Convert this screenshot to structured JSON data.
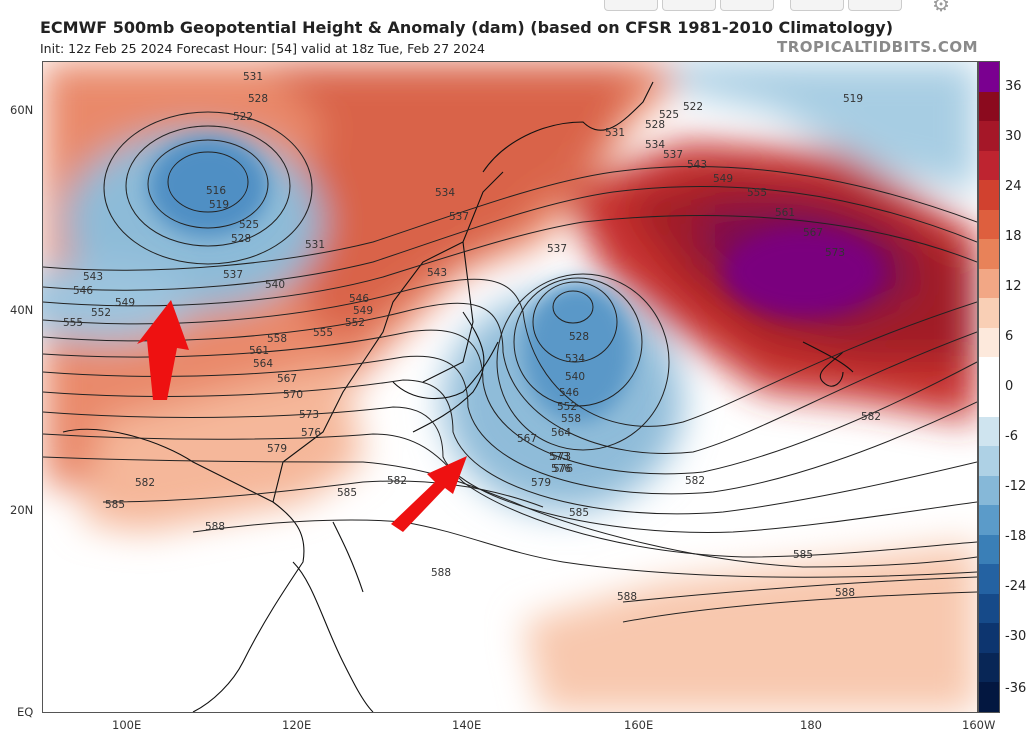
{
  "header": {
    "title": "ECMWF 500mb Geopotential Height & Anomaly (dam) (based on CFSR 1981-2010 Climatology)",
    "subtitle": "Init: 12z Feb 25 2024   Forecast Hour: [54]   valid at 18z Tue, Feb 27 2024",
    "credit": "TROPICALTIDBITS.COM"
  },
  "axes": {
    "y_ticks": [
      "60N",
      "40N",
      "20N",
      "EQ"
    ],
    "x_ticks": [
      "100E",
      "120E",
      "140E",
      "160E",
      "180",
      "160W"
    ]
  },
  "colorbar": {
    "labels": [
      "36",
      "30",
      "24",
      "18",
      "12",
      "6",
      "0",
      "-6",
      "-12",
      "-18",
      "-24",
      "-30",
      "-36"
    ],
    "colors": [
      "#7a0090",
      "#8b0a1e",
      "#a51728",
      "#be2430",
      "#d1412f",
      "#de5f3e",
      "#e88259",
      "#f2a785",
      "#f9cfb5",
      "#fde9dc",
      "#ffffff",
      "#ffffff",
      "#cfe4ef",
      "#aed1e5",
      "#86b8d8",
      "#5b9bc9",
      "#3a7fb7",
      "#2462a2",
      "#164a89",
      "#0d356f",
      "#082656",
      "#031740"
    ]
  },
  "contour_labels": [
    "531",
    "528",
    "522",
    "516",
    "519",
    "525",
    "528",
    "531",
    "537",
    "540",
    "543",
    "546",
    "549",
    "552",
    "555",
    "558",
    "561",
    "564",
    "567",
    "570",
    "573",
    "576",
    "579",
    "582",
    "585",
    "588",
    "534",
    "537",
    "543",
    "546",
    "549",
    "552",
    "555",
    "537",
    "528",
    "534",
    "540",
    "546",
    "552",
    "558",
    "564",
    "567",
    "573",
    "576",
    "579",
    "582",
    "585",
    "588",
    "522",
    "525",
    "528",
    "531",
    "534",
    "537",
    "543",
    "549",
    "555",
    "561",
    "567",
    "573",
    "519",
    "582",
    "585",
    "588",
    "573",
    "576",
    "585",
    "582",
    "588"
  ],
  "annotations": {
    "arrow_color": "#ee1111"
  }
}
